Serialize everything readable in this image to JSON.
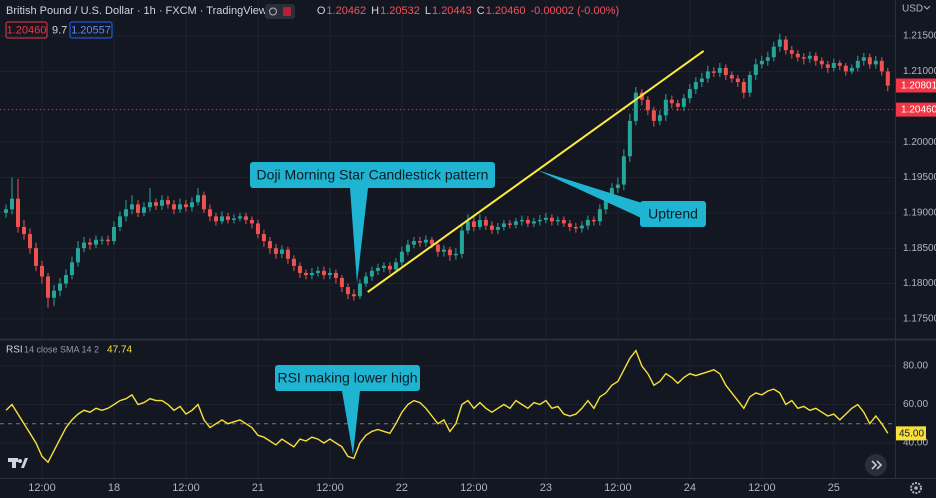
{
  "header": {
    "symbol": "British Pound / U.S. Dollar · 1h · FXCM · TradingView",
    "ohlc": [
      {
        "label": "O",
        "value": "1.20462"
      },
      {
        "label": "H",
        "value": "1.20532"
      },
      {
        "label": "L",
        "value": "1.20443"
      },
      {
        "label": "C",
        "value": "1.20460"
      }
    ],
    "change": "-0.00002 (-0.00%)",
    "bid": "1.20460",
    "spread": "9.7",
    "ask": "1.20557"
  },
  "chart_data": [
    {
      "type": "candlestick",
      "currency": "USD",
      "up_color": "#26a69a",
      "down_color": "#ef5350",
      "xlim": [
        -1,
        148.2
      ],
      "ylim": [
        1.1723,
        1.2201
      ],
      "xticks": [
        {
          "value": 6,
          "label": "12:00"
        },
        {
          "value": 18,
          "label": "18"
        },
        {
          "value": 30,
          "label": "12:00"
        },
        {
          "value": 42,
          "label": "21"
        },
        {
          "value": 54,
          "label": "12:00"
        },
        {
          "value": 66,
          "label": "22"
        },
        {
          "value": 78,
          "label": "12:00"
        },
        {
          "value": 90,
          "label": "23"
        },
        {
          "value": 102,
          "label": "12:00"
        },
        {
          "value": 114,
          "label": "24"
        },
        {
          "value": 126,
          "label": "12:00"
        },
        {
          "value": 138,
          "label": "25"
        }
      ],
      "yticks": [
        {
          "value": 1.215,
          "label": "1.21500"
        },
        {
          "value": 1.21,
          "label": "1.21000"
        },
        {
          "value": 1.2,
          "label": "1.20000"
        },
        {
          "value": 1.195,
          "label": "1.19500"
        },
        {
          "value": 1.19,
          "label": "1.19000"
        },
        {
          "value": 1.185,
          "label": "1.18500"
        },
        {
          "value": 1.18,
          "label": "1.18000"
        },
        {
          "value": 1.175,
          "label": "1.17500"
        }
      ],
      "grid": true,
      "open": [
        1.19,
        1.1905,
        1.192,
        1.188,
        1.187,
        1.185,
        1.1825,
        1.181,
        1.178,
        1.179,
        1.18,
        1.1812,
        1.183,
        1.185,
        1.1858,
        1.1855,
        1.1862,
        1.1862,
        1.186,
        1.188,
        1.1895,
        1.1905,
        1.1912,
        1.19,
        1.1908,
        1.1915,
        1.191,
        1.1918,
        1.1912,
        1.1905,
        1.1912,
        1.1908,
        1.1915,
        1.1925,
        1.1905,
        1.1895,
        1.1888,
        1.1895,
        1.189,
        1.1892,
        1.1895,
        1.189,
        1.1885,
        1.187,
        1.186,
        1.185,
        1.1842,
        1.1848,
        1.1835,
        1.1825,
        1.1815,
        1.1812,
        1.1815,
        1.1818,
        1.1812,
        1.1815,
        1.1808,
        1.1795,
        1.1785,
        1.1782,
        1.18,
        1.181,
        1.1818,
        1.1822,
        1.1825,
        1.182,
        1.183,
        1.1845,
        1.1855,
        1.186,
        1.1858,
        1.1862,
        1.1855,
        1.1845,
        1.1848,
        1.184,
        1.1842,
        1.1875,
        1.1888,
        1.188,
        1.189,
        1.1882,
        1.1876,
        1.188,
        1.1885,
        1.1883,
        1.1888,
        1.189,
        1.1885,
        1.1888,
        1.189,
        1.1893,
        1.1888,
        1.189,
        1.1885,
        1.188,
        1.1878,
        1.1882,
        1.189,
        1.1888,
        1.1905,
        1.192,
        1.1935,
        1.194,
        1.198,
        1.203,
        1.207,
        1.206,
        1.2045,
        1.203,
        1.2038,
        1.206,
        1.2055,
        1.205,
        1.2062,
        1.2075,
        1.2085,
        1.209,
        1.21,
        1.2098,
        1.2105,
        1.2095,
        1.209,
        1.2085,
        1.207,
        1.2095,
        1.211,
        1.2115,
        1.212,
        1.2135,
        1.2145,
        1.213,
        1.2125,
        1.212,
        1.2118,
        1.2122,
        1.2115,
        1.211,
        1.2105,
        1.2112,
        1.2108,
        1.21,
        1.2105,
        1.2115,
        1.212,
        1.211,
        1.2115,
        1.21
      ],
      "high": [
        1.1912,
        1.195,
        1.1948,
        1.189,
        1.1878,
        1.1858,
        1.1832,
        1.1815,
        1.1798,
        1.1808,
        1.182,
        1.1838,
        1.186,
        1.1866,
        1.1864,
        1.1868,
        1.1867,
        1.1868,
        1.1888,
        1.1902,
        1.1918,
        1.1925,
        1.1918,
        1.1915,
        1.1935,
        1.192,
        1.1925,
        1.1924,
        1.1918,
        1.192,
        1.1918,
        1.1922,
        1.1935,
        1.193,
        1.1912,
        1.19,
        1.1902,
        1.19,
        1.1898,
        1.19,
        1.19,
        1.1895,
        1.189,
        1.1876,
        1.1866,
        1.1856,
        1.1854,
        1.1852,
        1.184,
        1.183,
        1.182,
        1.1822,
        1.1824,
        1.1824,
        1.1822,
        1.182,
        1.1812,
        1.18,
        1.1792,
        1.1806,
        1.1816,
        1.1824,
        1.1828,
        1.183,
        1.183,
        1.1836,
        1.1852,
        1.1862,
        1.1866,
        1.1866,
        1.1868,
        1.1866,
        1.186,
        1.1854,
        1.1852,
        1.185,
        1.1882,
        1.1898,
        1.1895,
        1.1898,
        1.1895,
        1.1888,
        1.1886,
        1.189,
        1.189,
        1.1893,
        1.1896,
        1.1895,
        1.1893,
        1.1897,
        1.19,
        1.1898,
        1.1895,
        1.1895,
        1.189,
        1.1886,
        1.1888,
        1.1896,
        1.1895,
        1.1912,
        1.1928,
        1.1942,
        1.195,
        1.199,
        1.204,
        1.2078,
        1.2075,
        1.2065,
        1.205,
        1.2045,
        1.2068,
        1.2066,
        1.206,
        1.2068,
        1.2082,
        1.2092,
        1.2098,
        1.2108,
        1.2106,
        1.2112,
        1.211,
        1.21,
        1.2095,
        1.209,
        1.21,
        1.2118,
        1.2122,
        1.2128,
        1.2142,
        1.2153,
        1.215,
        1.2136,
        1.213,
        1.2126,
        1.2128,
        1.2127,
        1.212,
        1.2115,
        1.2118,
        1.2116,
        1.2112,
        1.211,
        1.2122,
        1.2126,
        1.2125,
        1.2122,
        1.212,
        1.2105
      ],
      "low": [
        1.1893,
        1.1898,
        1.1872,
        1.1862,
        1.1842,
        1.1818,
        1.18,
        1.1766,
        1.1768,
        1.1782,
        1.1794,
        1.1806,
        1.1824,
        1.1844,
        1.1848,
        1.185,
        1.1855,
        1.1854,
        1.1855,
        1.1874,
        1.1888,
        1.1898,
        1.1894,
        1.1895,
        1.1902,
        1.1904,
        1.1904,
        1.1906,
        1.1898,
        1.19,
        1.1902,
        1.1902,
        1.191,
        1.19,
        1.1888,
        1.1882,
        1.1884,
        1.1885,
        1.1885,
        1.1888,
        1.1884,
        1.1878,
        1.1864,
        1.1852,
        1.1842,
        1.1835,
        1.1836,
        1.1828,
        1.1818,
        1.1808,
        1.1806,
        1.1806,
        1.181,
        1.1806,
        1.1806,
        1.18,
        1.1788,
        1.1778,
        1.1776,
        1.1778,
        1.1795,
        1.1804,
        1.1812,
        1.1816,
        1.1814,
        1.1815,
        1.1825,
        1.184,
        1.185,
        1.1852,
        1.1852,
        1.185,
        1.1838,
        1.1838,
        1.1832,
        1.1834,
        1.1836,
        1.187,
        1.1874,
        1.1876,
        1.1876,
        1.187,
        1.187,
        1.1875,
        1.1878,
        1.1878,
        1.1882,
        1.188,
        1.188,
        1.1882,
        1.1885,
        1.1882,
        1.1882,
        1.188,
        1.1874,
        1.1872,
        1.1872,
        1.1876,
        1.1882,
        1.1882,
        1.1898,
        1.1914,
        1.1928,
        1.1932,
        1.1972,
        1.2024,
        1.2052,
        1.2038,
        1.2022,
        1.2024,
        1.203,
        1.2048,
        1.2044,
        1.2044,
        1.2055,
        1.2068,
        1.2078,
        1.2084,
        1.2092,
        1.2092,
        1.2088,
        1.2084,
        1.2078,
        1.2062,
        1.2064,
        1.2088,
        1.2104,
        1.2108,
        1.2114,
        1.2128,
        1.2124,
        1.2118,
        1.2114,
        1.211,
        1.2112,
        1.2108,
        1.2104,
        1.2098,
        1.21,
        1.2102,
        1.2094,
        1.2096,
        1.21,
        1.2108,
        1.2104,
        1.2104,
        1.2094,
        1.2072
      ],
      "close": [
        1.1905,
        1.192,
        1.188,
        1.187,
        1.185,
        1.1825,
        1.181,
        1.178,
        1.179,
        1.18,
        1.1812,
        1.183,
        1.185,
        1.1858,
        1.1855,
        1.1862,
        1.1862,
        1.186,
        1.188,
        1.1895,
        1.1905,
        1.1912,
        1.19,
        1.1908,
        1.1915,
        1.191,
        1.1918,
        1.1912,
        1.1905,
        1.1912,
        1.1908,
        1.1915,
        1.1925,
        1.1905,
        1.1895,
        1.1888,
        1.1895,
        1.189,
        1.1892,
        1.1895,
        1.189,
        1.1885,
        1.187,
        1.186,
        1.185,
        1.1842,
        1.1848,
        1.1835,
        1.1825,
        1.1815,
        1.1812,
        1.1815,
        1.1818,
        1.1812,
        1.1815,
        1.1808,
        1.1795,
        1.1785,
        1.1782,
        1.18,
        1.181,
        1.1818,
        1.1822,
        1.1825,
        1.182,
        1.183,
        1.1845,
        1.1855,
        1.186,
        1.1858,
        1.1862,
        1.1855,
        1.1845,
        1.1848,
        1.184,
        1.1842,
        1.1875,
        1.1888,
        1.188,
        1.189,
        1.1882,
        1.1876,
        1.188,
        1.1885,
        1.1883,
        1.1888,
        1.189,
        1.1885,
        1.1888,
        1.189,
        1.1893,
        1.1888,
        1.189,
        1.1885,
        1.188,
        1.1878,
        1.1882,
        1.189,
        1.1888,
        1.1905,
        1.192,
        1.1935,
        1.194,
        1.198,
        1.203,
        1.207,
        1.206,
        1.2045,
        1.203,
        1.2038,
        1.206,
        1.2055,
        1.205,
        1.2062,
        1.2075,
        1.2085,
        1.209,
        1.21,
        1.2098,
        1.2105,
        1.2095,
        1.209,
        1.2085,
        1.207,
        1.2095,
        1.211,
        1.2115,
        1.212,
        1.2135,
        1.2145,
        1.213,
        1.2125,
        1.212,
        1.2118,
        1.2122,
        1.2115,
        1.211,
        1.2105,
        1.2112,
        1.2108,
        1.21,
        1.2105,
        1.2115,
        1.212,
        1.211,
        1.2115,
        1.21,
        1.208
      ],
      "price_lines": [
        {
          "value": 1.20801,
          "label": "1.20801",
          "color": "#f23645"
        },
        {
          "value": 1.2046,
          "label": "1.20460",
          "color": "#f23645"
        }
      ],
      "trendline": {
        "x": [
          60.3,
          116.3
        ],
        "y": [
          1.1788,
          1.2129
        ],
        "color": "#ffeb3b"
      },
      "annotations": [
        {
          "text": "Doji Morning Star Candlestick pattern"
        },
        {
          "text": "Uptrend"
        }
      ]
    },
    {
      "type": "line",
      "title": "RSI",
      "subtitle": "14 close SMA 14 2",
      "legend_value": 47.74,
      "color": "#f7e03c",
      "ylim": [
        21.8,
        93.5
      ],
      "yticks": [
        {
          "value": 80,
          "label": "80.00"
        },
        {
          "value": 60,
          "label": "60.00"
        },
        {
          "value": 40,
          "label": "40.00"
        }
      ],
      "midline": 50,
      "price_label": {
        "value": 45,
        "label": "45.00"
      },
      "values": [
        57,
        60,
        55,
        50,
        45,
        40,
        33,
        30,
        36,
        42,
        48,
        52,
        55,
        57,
        56,
        58,
        57,
        58,
        60,
        62,
        63,
        65,
        60,
        61,
        63,
        62,
        62,
        60,
        57,
        59,
        55,
        57,
        60,
        52,
        48,
        50,
        52,
        50,
        51,
        52,
        50,
        48,
        44,
        43,
        41,
        39,
        42,
        40,
        38,
        42,
        41,
        43,
        42,
        40,
        42,
        40,
        38,
        33,
        32,
        40,
        44,
        46,
        47,
        46,
        45,
        50,
        56,
        60,
        62,
        61,
        58,
        54,
        50,
        52,
        46,
        50,
        60,
        62,
        58,
        61,
        58,
        56,
        58,
        60,
        58,
        62,
        60,
        58,
        61,
        60,
        62,
        58,
        59,
        55,
        54,
        55,
        58,
        62,
        58,
        64,
        66,
        70,
        72,
        78,
        84,
        88,
        80,
        76,
        70,
        72,
        76,
        74,
        71,
        74,
        76,
        75,
        76,
        77,
        78,
        76,
        70,
        66,
        62,
        58,
        64,
        66,
        65,
        67,
        68,
        66,
        60,
        62,
        58,
        59,
        57,
        58,
        56,
        54,
        55,
        52,
        55,
        58,
        60,
        56,
        50,
        54,
        50,
        45
      ],
      "annotations": [
        {
          "text": "RSI making lower high"
        }
      ]
    }
  ]
}
